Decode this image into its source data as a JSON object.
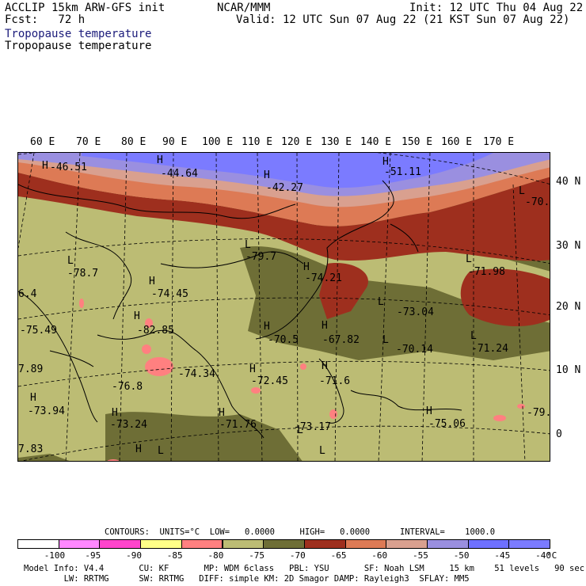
{
  "header": {
    "model": "ACCLIP 15km ARW-GFS init",
    "fcst": "Fcst:   72 h",
    "center": "NCAR/MMM",
    "init": "Init: 12 UTC Thu 04 Aug 22",
    "valid": "Valid: 12 UTC Sun 07 Aug 22 (21 KST Sun 07 Aug 22)",
    "field_blue": "Tropopause temperature",
    "field_black": "Tropopause temperature"
  },
  "lon_ticks": [
    "60 E",
    "70 E",
    "80 E",
    "90 E",
    "100 E",
    "110 E",
    "120 E",
    "130 E",
    "140 E",
    "150 E",
    "160 E",
    "170 E"
  ],
  "lat_ticks": [
    "40 N",
    "30 N",
    "20 N",
    "10 N",
    "0"
  ],
  "map_labels": [
    {
      "t": "H",
      "c": "#000"
    },
    {
      "t": "-46.51",
      "c": "#000"
    },
    {
      "t": "H",
      "c": "#000"
    },
    {
      "t": "-44.64",
      "c": "#000"
    },
    {
      "t": "H",
      "c": "#000"
    },
    {
      "t": "-42.27",
      "c": "#000"
    },
    {
      "t": "H",
      "c": "#000"
    },
    {
      "t": "-51.11",
      "c": "#000"
    },
    {
      "t": "L",
      "c": "#000"
    },
    {
      "t": "-70.",
      "c": "#000"
    },
    {
      "t": "L",
      "c": "#000"
    },
    {
      "t": "-79.7",
      "c": "#000"
    },
    {
      "t": "L",
      "c": "#000"
    },
    {
      "t": "-78.7",
      "c": "#000"
    },
    {
      "t": "H",
      "c": "#000"
    },
    {
      "t": "-74.45",
      "c": "#000"
    },
    {
      "t": "H",
      "c": "#000"
    },
    {
      "t": "-74.21",
      "c": "#000"
    },
    {
      "t": "L",
      "c": "#000"
    },
    {
      "t": "-71.98",
      "c": "#000"
    },
    {
      "t": "6.4",
      "c": "#000"
    },
    {
      "t": "-75.49",
      "c": "#000"
    },
    {
      "t": "H",
      "c": "#000"
    },
    {
      "t": "-82.85",
      "c": "#000"
    },
    {
      "t": "L",
      "c": "#000"
    },
    {
      "t": "-73.04",
      "c": "#000"
    },
    {
      "t": "H",
      "c": "#000"
    },
    {
      "t": "-70.5",
      "c": "#000"
    },
    {
      "t": "H",
      "c": "#000"
    },
    {
      "t": "-67.82",
      "c": "#000"
    },
    {
      "t": "L",
      "c": "#000"
    },
    {
      "t": "-70.14",
      "c": "#000"
    },
    {
      "t": "L",
      "c": "#000"
    },
    {
      "t": "-71.24",
      "c": "#000"
    },
    {
      "t": "7.89",
      "c": "#000"
    },
    {
      "t": "-76.8",
      "c": "#000"
    },
    {
      "t": "-74.34",
      "c": "#000"
    },
    {
      "t": "H",
      "c": "#000"
    },
    {
      "t": "-72.45",
      "c": "#000"
    },
    {
      "t": "H",
      "c": "#000"
    },
    {
      "t": "-71.6",
      "c": "#000"
    },
    {
      "t": "H",
      "c": "#000"
    },
    {
      "t": "-73.94",
      "c": "#000"
    },
    {
      "t": "H",
      "c": "#000"
    },
    {
      "t": "-73.24",
      "c": "#000"
    },
    {
      "t": "H",
      "c": "#000"
    },
    {
      "t": "-71.76",
      "c": "#000"
    },
    {
      "t": "L",
      "c": "#000"
    },
    {
      "t": "-73.17",
      "c": "#000"
    },
    {
      "t": "H",
      "c": "#000"
    },
    {
      "t": "-75.06",
      "c": "#000"
    },
    {
      "t": "-79.",
      "c": "#000"
    },
    {
      "t": "7.83",
      "c": "#000"
    },
    {
      "t": "H",
      "c": "#000"
    },
    {
      "t": "L",
      "c": "#000"
    },
    {
      "t": "L",
      "c": "#000"
    }
  ],
  "colorbar": {
    "contours_line": "CONTOURS:  UNITS=°C  LOW=   0.0000     HIGH=   0.0000      INTERVAL=    1000.0",
    "unit": "°C",
    "levels": [
      "-100",
      "-95",
      "-90",
      "-85",
      "-80",
      "-75",
      "-70",
      "-65",
      "-60",
      "-55",
      "-50",
      "-45",
      "-40"
    ],
    "colors": [
      "#ffffff",
      "#ff88ff",
      "#ff44cc",
      "#ffff88",
      "#ff8080",
      "#bcbc74",
      "#6e6e36",
      "#9e2f1e",
      "#dd7a55",
      "#d9a08f",
      "#9a8fe0",
      "#6e70ff",
      "#7b7bff"
    ]
  },
  "footer": {
    "line1": "Model Info: V4.4       CU: KF       MP: WDM 6class   PBL: YSU       SF: Noah LSM     15 km    51 levels   90 sec",
    "line2": "        LW: RRTMG      SW: RRTMG   DIFF: simple KM: 2D Smagor DAMP: Rayleigh3  SFLAY: MM5"
  }
}
